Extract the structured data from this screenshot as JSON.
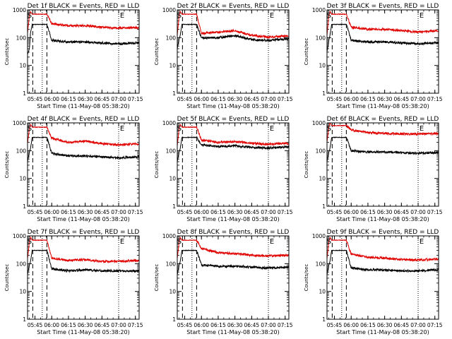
{
  "figure": {
    "background": "#ffffff",
    "colors": {
      "events": "#000000",
      "lld": "#e00000",
      "axes": "#000000"
    }
  },
  "chart_data": [
    {
      "type": "line",
      "title": "Det 1f BLACK = Events, RED = LLD",
      "xlabel": "Start Time (11-May-08 05:38:20)",
      "ylabel": "Counts/sec",
      "yscale": "log",
      "ylim": [
        1,
        1000
      ],
      "xlim": [
        "05:38:20",
        "07:18:20"
      ],
      "yticks": [
        "1",
        "10",
        "100",
        "1000"
      ],
      "xticks": [
        "05:45",
        "06:00",
        "06:15",
        "06:30",
        "06:45",
        "07:00",
        "07:15"
      ],
      "markers": {
        "S": "05:40:10",
        "E": "07:00:00"
      },
      "dashed_lines": [
        "05:43:00",
        "05:55:40"
      ],
      "dotted_lines": [
        "05:51:30",
        "07:00:00"
      ],
      "series": [
        {
          "name": "Events",
          "color": "#000000",
          "x": [
            "05:38:20",
            "05:40:00",
            "05:41:00",
            "05:42:30",
            "05:55:40",
            "06:00",
            "06:15",
            "06:30",
            "06:45",
            "07:00",
            "07:15"
          ],
          "y": [
            25,
            40,
            150,
            300,
            300,
            80,
            70,
            70,
            65,
            60,
            65
          ]
        },
        {
          "name": "LLD",
          "color": "#e00000",
          "x": [
            "05:38:20",
            "05:40:00",
            "05:41:00",
            "05:42:30",
            "05:55:40",
            "06:00",
            "06:15",
            "06:30",
            "06:45",
            "07:00",
            "07:15"
          ],
          "y": [
            150,
            600,
            900,
            700,
            700,
            320,
            270,
            270,
            240,
            220,
            230
          ]
        }
      ]
    },
    {
      "type": "line",
      "title": "Det 2f BLACK = Events, RED = LLD",
      "xlabel": "Start Time (11-May-08 05:38:20)",
      "ylabel": "Counts/sec",
      "yscale": "log",
      "ylim": [
        1,
        1000
      ],
      "xlim": [
        "05:38:20",
        "07:18:20"
      ],
      "yticks": [
        "1",
        "10",
        "100",
        "1000"
      ],
      "xticks": [
        "05:45",
        "06:00",
        "06:15",
        "06:30",
        "06:45",
        "07:00",
        "07:15"
      ],
      "markers": {
        "S": "05:40:10",
        "E": "07:00:00"
      },
      "dashed_lines": [
        "05:43:00",
        "05:55:40"
      ],
      "dotted_lines": [
        "05:51:30",
        "07:00:00"
      ],
      "series": [
        {
          "name": "Events",
          "color": "#000000",
          "x": [
            "05:38:20",
            "05:40:00",
            "05:41:00",
            "05:42:30",
            "05:55:40",
            "06:00",
            "06:15",
            "06:30",
            "06:45",
            "07:00",
            "07:15"
          ],
          "y": [
            40,
            90,
            120,
            300,
            300,
            100,
            100,
            120,
            85,
            80,
            90
          ]
        },
        {
          "name": "LLD",
          "color": "#e00000",
          "x": [
            "05:38:20",
            "05:40:00",
            "05:41:00",
            "05:42:30",
            "05:55:40",
            "06:00",
            "06:15",
            "06:30",
            "06:45",
            "07:00",
            "07:15"
          ],
          "y": [
            120,
            600,
            900,
            700,
            700,
            140,
            160,
            180,
            120,
            105,
            115
          ]
        }
      ]
    },
    {
      "type": "line",
      "title": "Det 3f BLACK = Events, RED = LLD",
      "xlabel": "Start Time (11-May-08 05:38:20)",
      "ylabel": "Counts/sec",
      "yscale": "log",
      "ylim": [
        1,
        1000
      ],
      "xlim": [
        "05:38:20",
        "07:18:20"
      ],
      "yticks": [
        "1",
        "10",
        "100",
        "1000"
      ],
      "xticks": [
        "05:45",
        "06:00",
        "06:15",
        "06:30",
        "06:45",
        "07:00",
        "07:15"
      ],
      "markers": {
        "S": "05:40:10",
        "E": "07:00:00"
      },
      "dashed_lines": [
        "05:43:00",
        "05:55:40"
      ],
      "dotted_lines": [
        "05:51:30",
        "07:00:00"
      ],
      "series": [
        {
          "name": "Events",
          "color": "#000000",
          "x": [
            "05:38:20",
            "05:40:00",
            "05:41:00",
            "05:42:30",
            "05:55:40",
            "06:00",
            "06:15",
            "06:30",
            "06:45",
            "07:00",
            "07:15"
          ],
          "y": [
            30,
            80,
            120,
            300,
            300,
            80,
            70,
            70,
            65,
            60,
            65
          ]
        },
        {
          "name": "LLD",
          "color": "#e00000",
          "x": [
            "05:38:20",
            "05:40:00",
            "05:41:00",
            "05:42:30",
            "05:55:40",
            "06:00",
            "06:15",
            "06:30",
            "06:45",
            "07:00",
            "07:15"
          ],
          "y": [
            120,
            600,
            900,
            700,
            700,
            240,
            200,
            200,
            180,
            160,
            175
          ]
        }
      ]
    },
    {
      "type": "line",
      "title": "Det 4f BLACK = Events, RED = LLD",
      "xlabel": "Start Time (11-May-08 05:38:20)",
      "ylabel": "Counts/sec",
      "yscale": "log",
      "ylim": [
        1,
        1000
      ],
      "xlim": [
        "05:38:20",
        "07:18:20"
      ],
      "yticks": [
        "1",
        "10",
        "100",
        "1000"
      ],
      "xticks": [
        "05:45",
        "06:00",
        "06:15",
        "06:30",
        "06:45",
        "07:00",
        "07:15"
      ],
      "markers": {
        "S": "05:40:10",
        "E": "07:00:00"
      },
      "dashed_lines": [
        "05:43:00",
        "05:55:40"
      ],
      "dotted_lines": [
        "05:51:30",
        "07:00:00"
      ],
      "series": [
        {
          "name": "Events",
          "color": "#000000",
          "x": [
            "05:38:20",
            "05:40:00",
            "05:41:00",
            "05:42:30",
            "05:55:40",
            "06:00",
            "06:15",
            "06:30",
            "06:45",
            "07:00",
            "07:15"
          ],
          "y": [
            40,
            90,
            120,
            300,
            300,
            80,
            65,
            65,
            60,
            55,
            60
          ]
        },
        {
          "name": "LLD",
          "color": "#e00000",
          "x": [
            "05:38:20",
            "05:40:00",
            "05:41:00",
            "05:42:30",
            "05:55:40",
            "06:00",
            "06:15",
            "06:30",
            "06:45",
            "07:00",
            "07:15"
          ],
          "y": [
            180,
            600,
            900,
            700,
            700,
            280,
            200,
            220,
            180,
            160,
            175
          ]
        }
      ]
    },
    {
      "type": "line",
      "title": "Det 5f BLACK = Events, RED = LLD",
      "xlabel": "Start Time (11-May-08 05:38:20)",
      "ylabel": "Counts/sec",
      "yscale": "log",
      "ylim": [
        1,
        1000
      ],
      "xlim": [
        "05:38:20",
        "07:18:20"
      ],
      "yticks": [
        "1",
        "10",
        "100",
        "1000"
      ],
      "xticks": [
        "05:45",
        "06:00",
        "06:15",
        "06:30",
        "06:45",
        "07:00",
        "07:15"
      ],
      "markers": {
        "S": "05:40:10",
        "E": "07:00:00"
      },
      "dashed_lines": [
        "05:43:00",
        "05:55:40"
      ],
      "dotted_lines": [
        "05:51:30",
        "07:00:00"
      ],
      "series": [
        {
          "name": "Events",
          "color": "#000000",
          "x": [
            "05:38:20",
            "05:40:00",
            "05:41:00",
            "05:42:30",
            "05:55:40",
            "06:00",
            "06:15",
            "06:30",
            "06:45",
            "07:00",
            "07:15"
          ],
          "y": [
            40,
            90,
            120,
            300,
            300,
            160,
            140,
            150,
            130,
            125,
            135
          ]
        },
        {
          "name": "LLD",
          "color": "#e00000",
          "x": [
            "05:38:20",
            "05:40:00",
            "05:41:00",
            "05:42:30",
            "05:55:40",
            "06:00",
            "06:15",
            "06:30",
            "06:45",
            "07:00",
            "07:15"
          ],
          "y": [
            150,
            600,
            900,
            700,
            700,
            240,
            200,
            210,
            185,
            170,
            185
          ]
        }
      ]
    },
    {
      "type": "line",
      "title": "Det 6f BLACK = Events, RED = LLD",
      "xlabel": "Start Time (11-May-08 05:38:20)",
      "ylabel": "Counts/sec",
      "yscale": "log",
      "ylim": [
        1,
        1000
      ],
      "xlim": [
        "05:38:20",
        "07:18:20"
      ],
      "yticks": [
        "1",
        "10",
        "100",
        "1000"
      ],
      "xticks": [
        "05:45",
        "06:00",
        "06:15",
        "06:30",
        "06:45",
        "07:00",
        "07:15"
      ],
      "markers": {
        "S": "05:40:10",
        "E": "07:00:00"
      },
      "dashed_lines": [
        "05:43:00",
        "05:55:40"
      ],
      "dotted_lines": [
        "05:51:30",
        "07:00:00"
      ],
      "series": [
        {
          "name": "Events",
          "color": "#000000",
          "x": [
            "05:38:20",
            "05:40:00",
            "05:41:00",
            "05:42:30",
            "05:55:40",
            "06:00",
            "06:15",
            "06:30",
            "06:45",
            "07:00",
            "07:15"
          ],
          "y": [
            40,
            90,
            120,
            300,
            300,
            100,
            90,
            90,
            85,
            80,
            85
          ]
        },
        {
          "name": "LLD",
          "color": "#e00000",
          "x": [
            "05:38:20",
            "05:40:00",
            "05:41:00",
            "05:42:30",
            "05:55:40",
            "06:00",
            "06:15",
            "06:30",
            "06:45",
            "07:00",
            "07:15"
          ],
          "y": [
            200,
            700,
            1000,
            800,
            800,
            550,
            450,
            420,
            400,
            400,
            410
          ]
        }
      ]
    },
    {
      "type": "line",
      "title": "Det 7f BLACK = Events, RED = LLD",
      "xlabel": "Start Time (11-May-08 05:38:20)",
      "ylabel": "Counts/sec",
      "yscale": "log",
      "ylim": [
        1,
        1000
      ],
      "xlim": [
        "05:38:20",
        "07:18:20"
      ],
      "yticks": [
        "1",
        "10",
        "100",
        "1000"
      ],
      "xticks": [
        "05:45",
        "06:00",
        "06:15",
        "06:30",
        "06:45",
        "07:00",
        "07:15"
      ],
      "markers": {
        "S": "05:40:10",
        "E": "07:00:00"
      },
      "dashed_lines": [
        "05:43:00",
        "05:55:40"
      ],
      "dotted_lines": [
        "05:51:30",
        "07:00:00"
      ],
      "series": [
        {
          "name": "Events",
          "color": "#000000",
          "x": [
            "05:38:20",
            "05:40:00",
            "05:41:00",
            "05:42:30",
            "05:55:40",
            "06:00",
            "06:15",
            "06:30",
            "06:45",
            "07:00",
            "07:15"
          ],
          "y": [
            40,
            90,
            120,
            300,
            300,
            65,
            55,
            60,
            55,
            55,
            55
          ]
        },
        {
          "name": "LLD",
          "color": "#e00000",
          "x": [
            "05:38:20",
            "05:40:00",
            "05:41:00",
            "05:42:30",
            "05:55:40",
            "06:00",
            "06:15",
            "06:30",
            "06:45",
            "07:00",
            "07:15"
          ],
          "y": [
            150,
            600,
            900,
            700,
            700,
            160,
            130,
            140,
            120,
            120,
            130
          ]
        }
      ]
    },
    {
      "type": "line",
      "title": "Det 8f BLACK = Events, RED = LLD",
      "xlabel": "Start Time (11-May-08 05:38:20)",
      "ylabel": "Counts/sec",
      "yscale": "log",
      "ylim": [
        1,
        1000
      ],
      "xlim": [
        "05:38:20",
        "07:18:20"
      ],
      "yticks": [
        "1",
        "10",
        "100",
        "1000"
      ],
      "xticks": [
        "05:45",
        "06:00",
        "06:15",
        "06:30",
        "06:45",
        "07:00",
        "07:15"
      ],
      "markers": {
        "S": "05:40:10",
        "E": "07:00:00"
      },
      "dashed_lines": [
        "05:43:00",
        "05:55:40"
      ],
      "dotted_lines": [
        "05:51:30",
        "07:00:00"
      ],
      "series": [
        {
          "name": "Events",
          "color": "#000000",
          "x": [
            "05:38:20",
            "05:40:00",
            "05:41:00",
            "05:42:30",
            "05:55:40",
            "06:00",
            "06:15",
            "06:30",
            "06:45",
            "07:00",
            "07:15"
          ],
          "y": [
            40,
            90,
            120,
            300,
            300,
            90,
            80,
            80,
            75,
            70,
            75
          ]
        },
        {
          "name": "LLD",
          "color": "#e00000",
          "x": [
            "05:38:20",
            "05:40:00",
            "05:41:00",
            "05:42:30",
            "05:55:40",
            "06:00",
            "06:15",
            "06:30",
            "06:45",
            "07:00",
            "07:15"
          ],
          "y": [
            150,
            600,
            900,
            700,
            700,
            350,
            250,
            230,
            200,
            190,
            200
          ]
        }
      ]
    },
    {
      "type": "line",
      "title": "Det 9f BLACK = Events, RED = LLD",
      "xlabel": "Start Time (11-May-08 05:38:20)",
      "ylabel": "Counts/sec",
      "yscale": "log",
      "ylim": [
        1,
        1000
      ],
      "xlim": [
        "05:38:20",
        "07:18:20"
      ],
      "yticks": [
        "1",
        "10",
        "100",
        "1000"
      ],
      "xticks": [
        "05:45",
        "06:00",
        "06:15",
        "06:30",
        "06:45",
        "07:00",
        "07:15"
      ],
      "markers": {
        "S": "05:40:10",
        "E": "07:00:00"
      },
      "dashed_lines": [
        "05:43:00",
        "05:55:40"
      ],
      "dotted_lines": [
        "05:51:30",
        "07:00:00"
      ],
      "series": [
        {
          "name": "Events",
          "color": "#000000",
          "x": [
            "05:38:20",
            "05:40:00",
            "05:41:00",
            "05:42:30",
            "05:55:40",
            "06:00",
            "06:15",
            "06:30",
            "06:45",
            "07:00",
            "07:15"
          ],
          "y": [
            40,
            90,
            120,
            300,
            300,
            70,
            60,
            60,
            55,
            55,
            60
          ]
        },
        {
          "name": "LLD",
          "color": "#e00000",
          "x": [
            "05:38:20",
            "05:40:00",
            "05:41:00",
            "05:42:30",
            "05:55:40",
            "06:00",
            "06:15",
            "06:30",
            "06:45",
            "07:00",
            "07:15"
          ],
          "y": [
            150,
            600,
            900,
            700,
            700,
            220,
            170,
            160,
            140,
            135,
            145
          ]
        }
      ]
    }
  ]
}
